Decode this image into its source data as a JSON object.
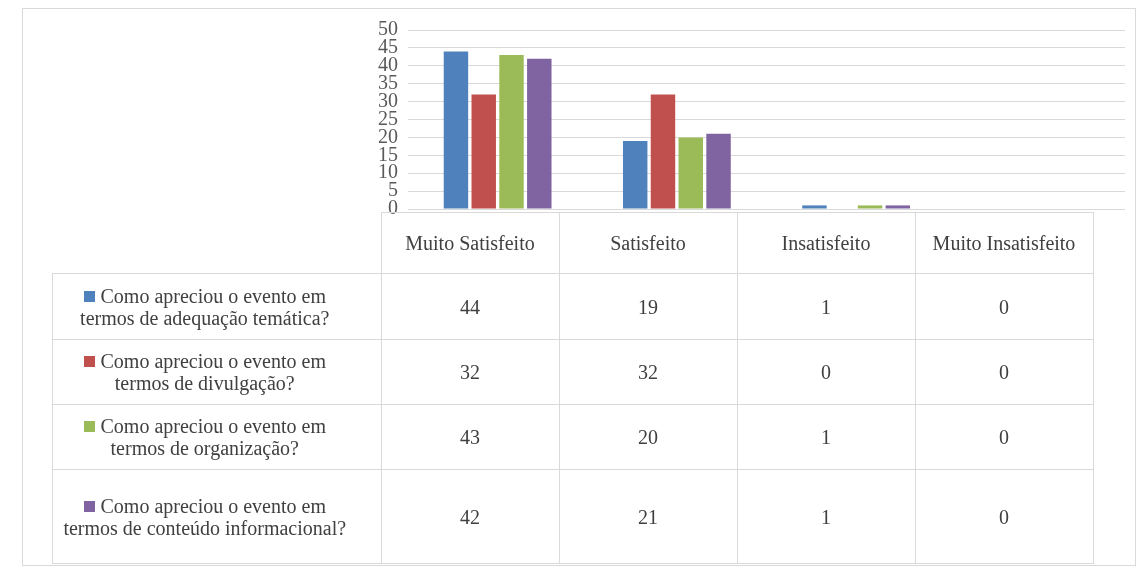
{
  "chart_data": {
    "type": "bar",
    "categories": [
      "Muito Satisfeito",
      "Satisfeito",
      "Insatisfeito",
      "Muito Insatisfeito"
    ],
    "series": [
      {
        "name": "Como apreciou o evento em termos de adequação temática?",
        "color": "#4f81bd",
        "values": [
          44,
          19,
          1,
          0
        ]
      },
      {
        "name": "Como apreciou o evento em termos de divulgação?",
        "color": "#c0504d",
        "values": [
          32,
          32,
          0,
          0
        ]
      },
      {
        "name": "Como apreciou o evento em termos de organização?",
        "color": "#9bbb59",
        "values": [
          43,
          20,
          1,
          0
        ]
      },
      {
        "name": "Como apreciou o evento em termos de conteúdo informacional?",
        "color": "#8064a2",
        "values": [
          42,
          21,
          1,
          0
        ]
      }
    ],
    "ylim": [
      0,
      50
    ],
    "yticks": [
      0,
      5,
      10,
      15,
      20,
      25,
      30,
      35,
      40,
      45,
      50
    ],
    "grid": "y",
    "legend": "bottom",
    "data_labels": true
  }
}
